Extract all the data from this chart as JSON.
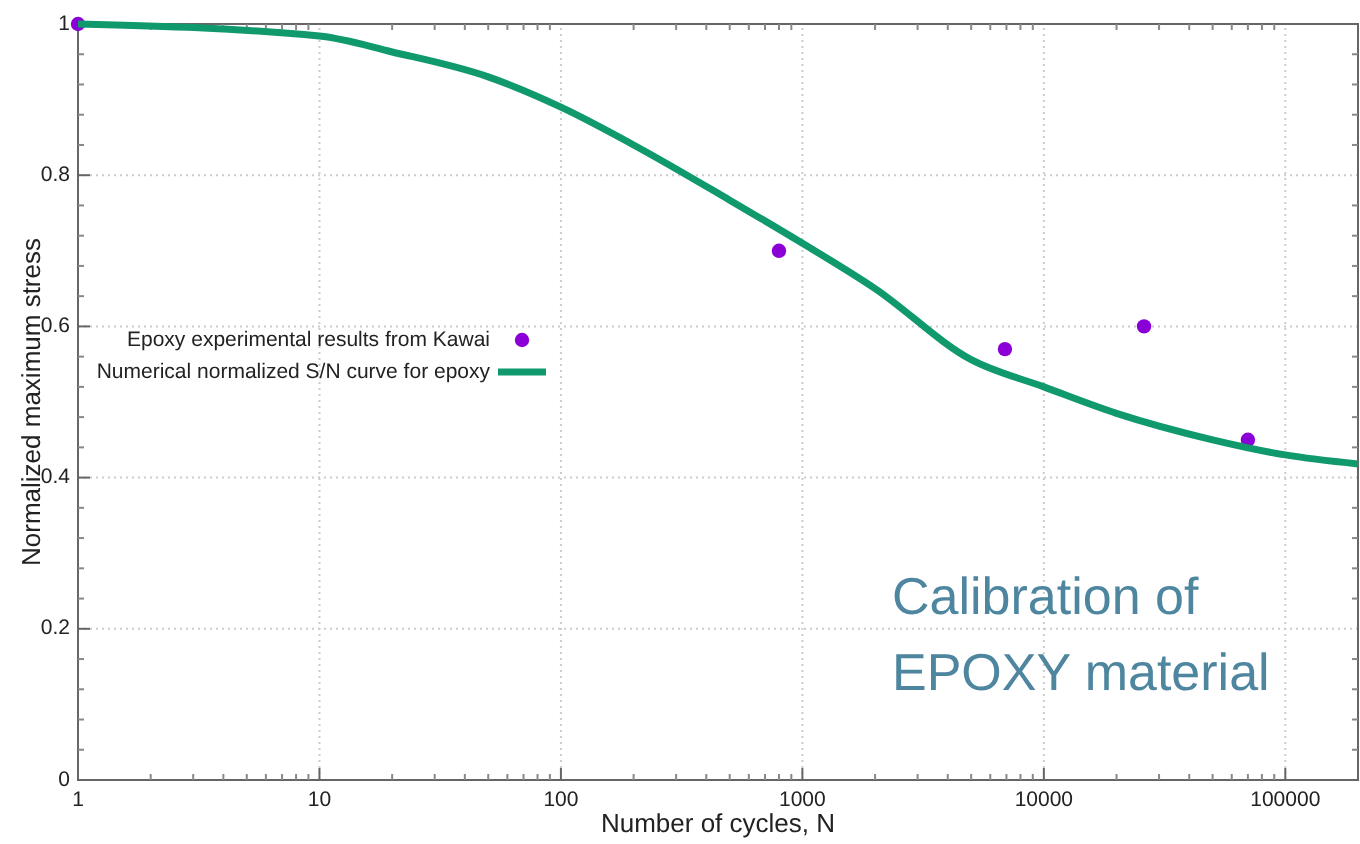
{
  "chart_data": {
    "type": "line",
    "xlabel": "Number of cycles, N",
    "ylabel": "Normalized maximum stress",
    "log": "x",
    "xlim": [
      1,
      200000
    ],
    "xticks": [
      1,
      10,
      100,
      1000,
      10000,
      100000
    ],
    "ylim": [
      0,
      1
    ],
    "yticks": [
      0,
      0.2,
      0.4,
      0.6,
      0.8,
      1
    ],
    "grid": true,
    "legend": "left",
    "annotations": [
      "Calibration of EPOXY material"
    ],
    "series": [
      {
        "name": "Epoxy experimental results from Kawai",
        "type": "scatter",
        "marker": "circle",
        "color": "#8b00d6",
        "x": [
          1,
          800,
          6900,
          26000,
          70000
        ],
        "values": [
          1,
          0.7,
          0.57,
          0.6,
          0.45
        ]
      },
      {
        "name": "Numerical normalized S/N curve for epoxy",
        "color": "#11996e",
        "marker": "none",
        "x": [
          1,
          10,
          20,
          50,
          100,
          200,
          500,
          1000,
          2000,
          5000,
          10000,
          20000,
          50000,
          100000,
          200000
        ],
        "values": [
          1,
          0.984,
          0.963,
          0.93,
          0.89,
          0.84,
          0.767,
          0.71,
          0.65,
          0.556,
          0.52,
          0.485,
          0.45,
          0.43,
          0.418
        ]
      }
    ]
  }
}
